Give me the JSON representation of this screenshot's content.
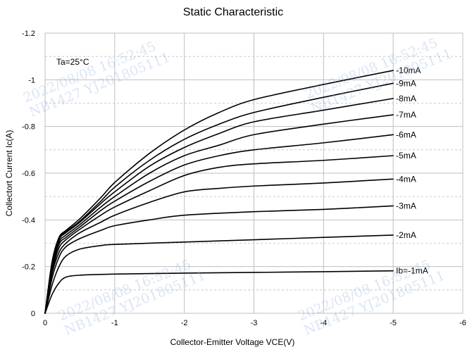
{
  "chart_data": {
    "type": "line",
    "title": "Static Characteristic",
    "xlabel": "Collector-Emitter Voltage  VCE(V)",
    "ylabel": "Collectort  Current   Ic(A)",
    "annotation": "Ta=25°C",
    "xlim": [
      0,
      -6
    ],
    "ylim": [
      0,
      -1.2
    ],
    "x_ticks": [
      "0",
      "-1",
      "-2",
      "-3",
      "-4",
      "-5",
      "-6"
    ],
    "y_ticks": [
      "0",
      "-0.2",
      "-0.4",
      "-0.6",
      "-0.8",
      "-1",
      "-1.2"
    ],
    "grid": true,
    "series": [
      {
        "name": "Ib=-1mA",
        "points": [
          [
            0,
            0
          ],
          [
            -0.1,
            -0.08
          ],
          [
            -0.2,
            -0.13
          ],
          [
            -0.3,
            -0.155
          ],
          [
            -0.5,
            -0.163
          ],
          [
            -1,
            -0.168
          ],
          [
            -2,
            -0.172
          ],
          [
            -3,
            -0.175
          ],
          [
            -4,
            -0.178
          ],
          [
            -5,
            -0.182
          ]
        ]
      },
      {
        "name": "-2mA",
        "points": [
          [
            0,
            0
          ],
          [
            -0.1,
            -0.12
          ],
          [
            -0.2,
            -0.2
          ],
          [
            -0.3,
            -0.245
          ],
          [
            -0.5,
            -0.275
          ],
          [
            -0.8,
            -0.29
          ],
          [
            -1,
            -0.295
          ],
          [
            -2,
            -0.305
          ],
          [
            -3,
            -0.315
          ],
          [
            -4,
            -0.325
          ],
          [
            -5,
            -0.335
          ]
        ]
      },
      {
        "name": "-3mA",
        "points": [
          [
            0,
            0
          ],
          [
            -0.1,
            -0.15
          ],
          [
            -0.2,
            -0.24
          ],
          [
            -0.3,
            -0.285
          ],
          [
            -0.5,
            -0.32
          ],
          [
            -0.8,
            -0.355
          ],
          [
            -1,
            -0.375
          ],
          [
            -1.5,
            -0.4
          ],
          [
            -2,
            -0.42
          ],
          [
            -3,
            -0.435
          ],
          [
            -4,
            -0.445
          ],
          [
            -5,
            -0.46
          ]
        ]
      },
      {
        "name": "-4mA",
        "points": [
          [
            0,
            0
          ],
          [
            -0.1,
            -0.17
          ],
          [
            -0.2,
            -0.26
          ],
          [
            -0.3,
            -0.3
          ],
          [
            -0.5,
            -0.345
          ],
          [
            -0.8,
            -0.39
          ],
          [
            -1,
            -0.42
          ],
          [
            -1.5,
            -0.475
          ],
          [
            -2,
            -0.52
          ],
          [
            -2.5,
            -0.535
          ],
          [
            -3,
            -0.545
          ],
          [
            -4,
            -0.558
          ],
          [
            -5,
            -0.575
          ]
        ]
      },
      {
        "name": "-5mA",
        "points": [
          [
            0,
            0
          ],
          [
            -0.1,
            -0.18
          ],
          [
            -0.2,
            -0.28
          ],
          [
            -0.3,
            -0.315
          ],
          [
            -0.5,
            -0.36
          ],
          [
            -0.8,
            -0.42
          ],
          [
            -1,
            -0.455
          ],
          [
            -1.5,
            -0.525
          ],
          [
            -2,
            -0.59
          ],
          [
            -2.5,
            -0.625
          ],
          [
            -3,
            -0.64
          ],
          [
            -4,
            -0.655
          ],
          [
            -5,
            -0.675
          ]
        ]
      },
      {
        "name": "-6mA",
        "points": [
          [
            0,
            0
          ],
          [
            -0.1,
            -0.19
          ],
          [
            -0.2,
            -0.295
          ],
          [
            -0.3,
            -0.325
          ],
          [
            -0.5,
            -0.37
          ],
          [
            -0.8,
            -0.44
          ],
          [
            -1,
            -0.48
          ],
          [
            -1.5,
            -0.565
          ],
          [
            -2,
            -0.635
          ],
          [
            -2.5,
            -0.675
          ],
          [
            -3,
            -0.7
          ],
          [
            -4,
            -0.73
          ],
          [
            -5,
            -0.765
          ]
        ]
      },
      {
        "name": "-7mA",
        "points": [
          [
            0,
            0
          ],
          [
            -0.1,
            -0.2
          ],
          [
            -0.2,
            -0.305
          ],
          [
            -0.3,
            -0.335
          ],
          [
            -0.5,
            -0.38
          ],
          [
            -0.8,
            -0.455
          ],
          [
            -1,
            -0.5
          ],
          [
            -1.5,
            -0.6
          ],
          [
            -2,
            -0.675
          ],
          [
            -2.5,
            -0.72
          ],
          [
            -3,
            -0.765
          ],
          [
            -4,
            -0.81
          ],
          [
            -5,
            -0.85
          ]
        ]
      },
      {
        "name": "-8mA",
        "points": [
          [
            0,
            0
          ],
          [
            -0.1,
            -0.21
          ],
          [
            -0.2,
            -0.315
          ],
          [
            -0.3,
            -0.345
          ],
          [
            -0.5,
            -0.39
          ],
          [
            -0.8,
            -0.47
          ],
          [
            -1,
            -0.52
          ],
          [
            -1.5,
            -0.63
          ],
          [
            -2,
            -0.71
          ],
          [
            -2.5,
            -0.77
          ],
          [
            -3,
            -0.82
          ],
          [
            -4,
            -0.87
          ],
          [
            -5,
            -0.92
          ]
        ]
      },
      {
        "name": "-9mA",
        "points": [
          [
            0,
            0
          ],
          [
            -0.1,
            -0.215
          ],
          [
            -0.2,
            -0.32
          ],
          [
            -0.3,
            -0.35
          ],
          [
            -0.5,
            -0.395
          ],
          [
            -0.8,
            -0.48
          ],
          [
            -1,
            -0.54
          ],
          [
            -1.5,
            -0.655
          ],
          [
            -2,
            -0.745
          ],
          [
            -2.5,
            -0.81
          ],
          [
            -3,
            -0.86
          ],
          [
            -4,
            -0.925
          ],
          [
            -5,
            -0.985
          ]
        ]
      },
      {
        "name": "-10mA",
        "points": [
          [
            0,
            0
          ],
          [
            -0.1,
            -0.22
          ],
          [
            -0.2,
            -0.325
          ],
          [
            -0.3,
            -0.355
          ],
          [
            -0.5,
            -0.405
          ],
          [
            -0.8,
            -0.495
          ],
          [
            -1,
            -0.56
          ],
          [
            -1.5,
            -0.685
          ],
          [
            -2,
            -0.785
          ],
          [
            -2.5,
            -0.86
          ],
          [
            -3,
            -0.915
          ],
          [
            -4,
            -0.98
          ],
          [
            -5,
            -1.04
          ]
        ]
      }
    ]
  },
  "watermarks": [
    {
      "line1": "2022/08/08  16:52:45",
      "line2": "NB1427  YJ201805111"
    },
    {
      "line1": "2022/08/08  16:52:45",
      "line2": "NB1427  YJ201805111"
    },
    {
      "line1": "2022/08/08  16:52:45",
      "line2": "NB1427  YJ201805111"
    },
    {
      "line1": "2022/08/08  16:52:45",
      "line2": "NB1427  YJ201805111"
    }
  ],
  "colors": {
    "line": "#000000",
    "grid": "#bfbfbf",
    "axis_text": "#000000",
    "watermark": "#8cafe1"
  }
}
